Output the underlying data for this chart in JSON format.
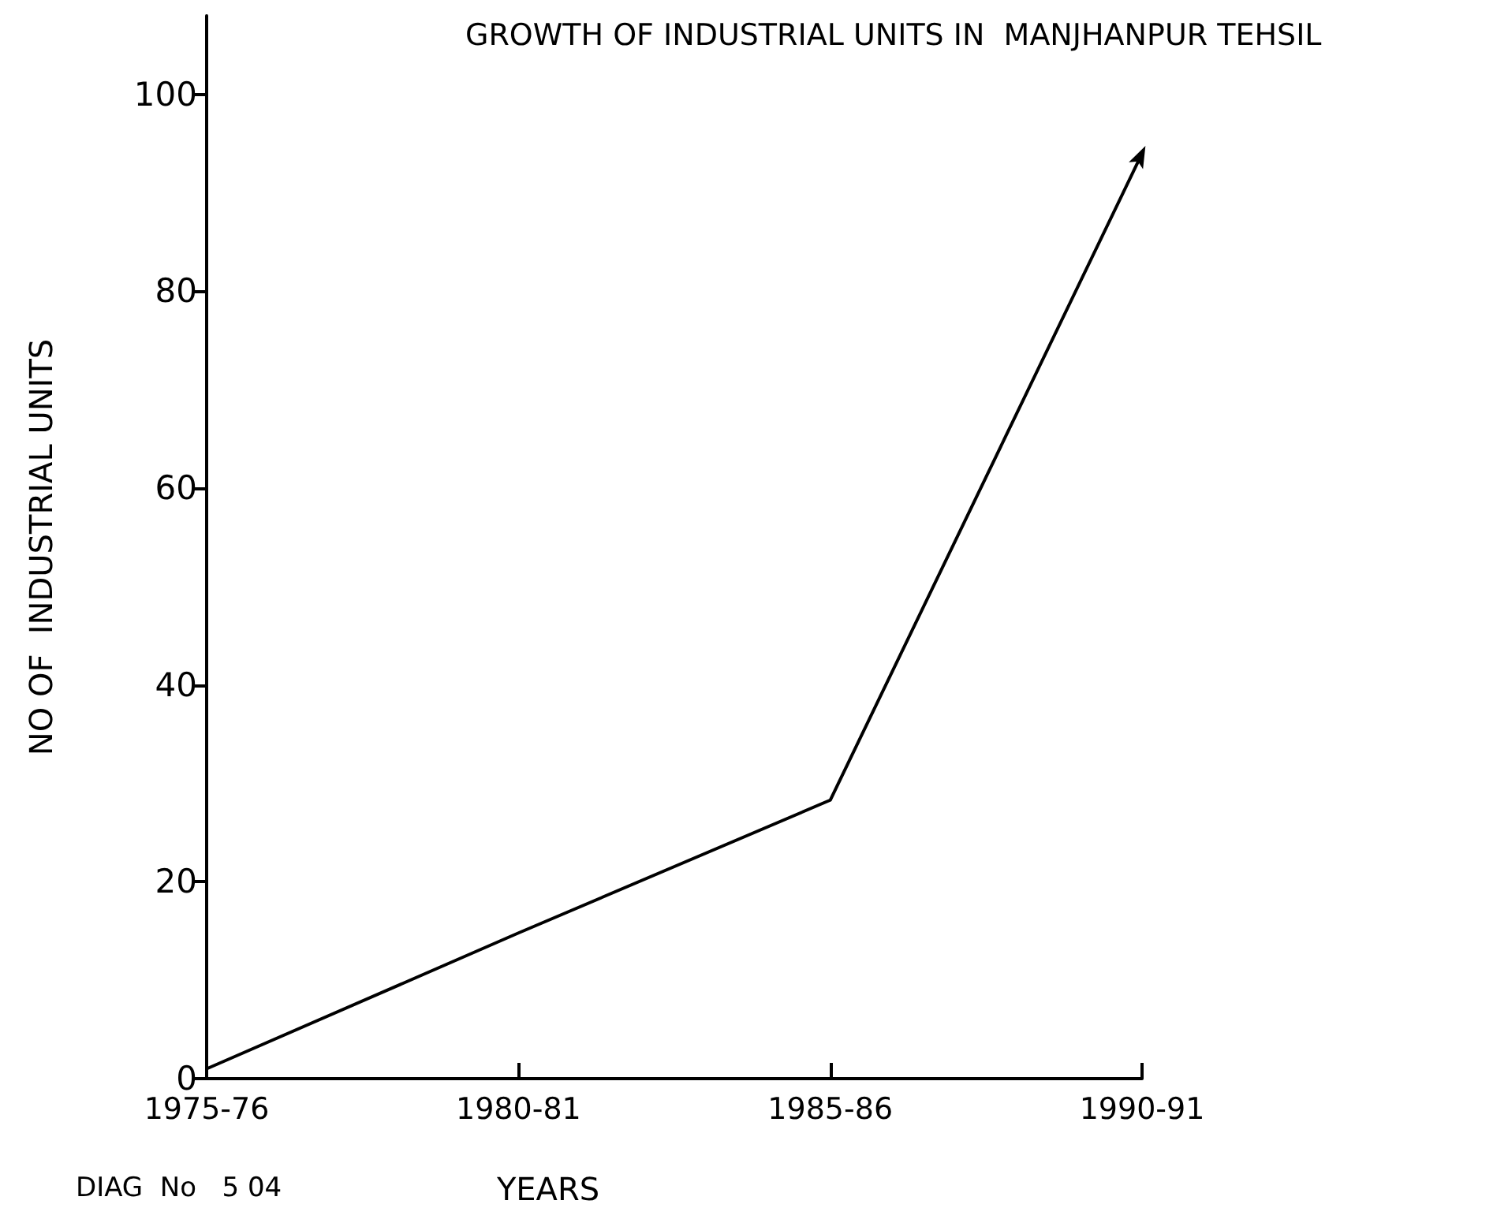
{
  "chart_data": {
    "type": "line",
    "title": "GROWTH OF INDUSTRIAL UNITS IN  MANJHANPUR TEHSIL",
    "xlabel": "YEARS",
    "ylabel": "NO OF  INDUSTRIAL UNITS",
    "annotations": [
      "DIAG  No   5 04"
    ],
    "categories": [
      "1975-76",
      "1980-81",
      "1985-86",
      "1990-91"
    ],
    "series": [
      {
        "color": "#000000",
        "values": [
          1,
          14.8,
          28.3,
          94
        ]
      }
    ],
    "ylim": [
      0,
      108
    ],
    "yticks": [
      0,
      20,
      40,
      60,
      80,
      100
    ],
    "grid": false,
    "marker": "none",
    "line_style": "solid"
  }
}
